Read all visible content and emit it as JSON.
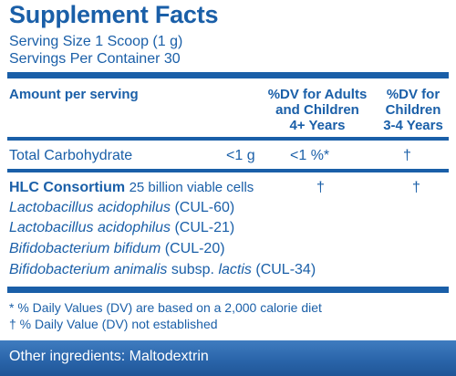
{
  "panel": {
    "title": "Supplement Facts",
    "serving_size": "Serving Size 1 Scoop (1 g)",
    "servings_per_container": "Servings Per Container 30",
    "header": {
      "amount_per_serving": "Amount per serving",
      "dv_adults_line1": "%DV for Adults",
      "dv_adults_line2": "and Children",
      "dv_adults_line3": "4+ Years",
      "dv_children_line1": "%DV for",
      "dv_children_line2": "Children",
      "dv_children_line3": "3-4 Years"
    },
    "carbohydrate": {
      "name": "Total Carbohydrate",
      "amount": "<1 g",
      "dv_adults": "<1 %*",
      "dv_children": "†"
    },
    "consortium": {
      "name": "HLC Consortium",
      "amount": "25 billion viable cells",
      "dv_adults": "†",
      "dv_children": "†",
      "strains": [
        {
          "name": "Lactobacillus acidophilus",
          "code": "(CUL-60)"
        },
        {
          "name": "Lactobacillus acidophilus",
          "code": "(CUL-21)"
        },
        {
          "name": "Bifidobacterium bifidum",
          "code": "(CUL-20)"
        },
        {
          "name": "Bifidobacterium animalis",
          "subsp": "subsp.",
          "variety": "lactis",
          "code": "(CUL-34)"
        }
      ]
    },
    "footnotes": [
      "* % Daily Values (DV) are based on a 2,000 calorie diet",
      "† % Daily Value (DV) not established"
    ]
  },
  "bottom": {
    "other_ingredients": "Other ingredients: Maltodextrin"
  },
  "colors": {
    "brand_blue": "#1a5fa8",
    "bar_blue": "#2a65aa"
  }
}
